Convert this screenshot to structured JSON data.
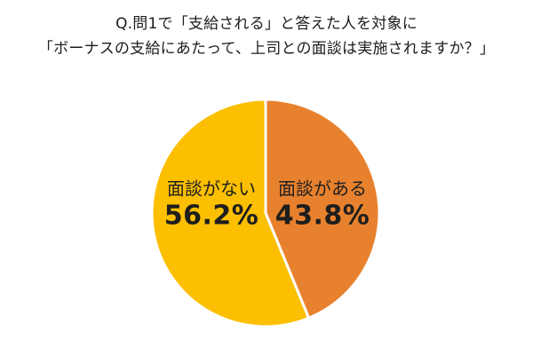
{
  "title": {
    "line1": "Q.問1で「支給される」と答えた人を対象に",
    "line2": "「ボーナスの支給にあたって、上司との面談は実施されますか？」"
  },
  "chart_data": {
    "type": "pie",
    "title": "Q.問1で「支給される」と答えた人を対象に「ボーナスの支給にあたって、上司との面談は実施されますか？」",
    "labels": [
      "面談がある",
      "面談がない"
    ],
    "values": [
      43.8,
      56.2
    ],
    "unit": "%",
    "colors": [
      "#E8812E",
      "#FCBF02"
    ],
    "start_angle_deg": 0,
    "direction": "clockwise",
    "separator_color": "#ffffff",
    "legend_position": "none",
    "display": [
      {
        "label": "面談がある",
        "value_text": "43.8%"
      },
      {
        "label": "面談がない",
        "value_text": "56.2%"
      }
    ]
  }
}
